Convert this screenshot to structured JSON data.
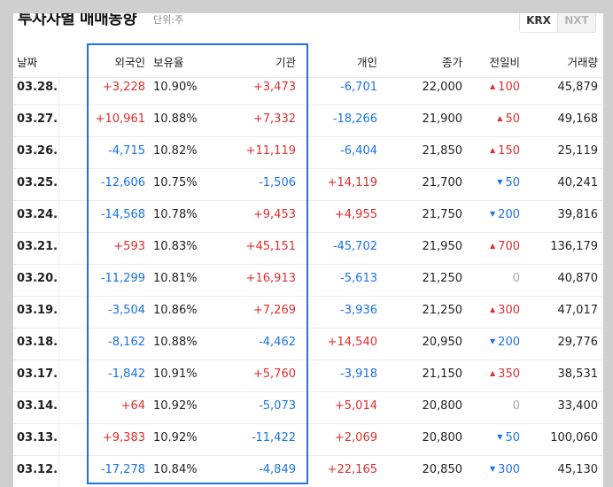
{
  "header": {
    "title": "투자자별 매매동향",
    "unit": "단위:주",
    "tabs": [
      {
        "label": "KRX",
        "active": true
      },
      {
        "label": "NXT",
        "active": false
      }
    ]
  },
  "columns": {
    "date": "날짜",
    "foreign": "외국인",
    "holding": "보유율",
    "institution": "기관",
    "individual": "개인",
    "close": "종가",
    "change": "전일비",
    "volume": "거래량"
  },
  "rows": [
    {
      "date": "03.28.",
      "foreign": "+3,228",
      "holding": "10.90%",
      "institution": "+3,473",
      "individual": "-6,701",
      "close": "22,000",
      "change_dir": "up",
      "change": "100",
      "volume": "45,879"
    },
    {
      "date": "03.27.",
      "foreign": "+10,961",
      "holding": "10.88%",
      "institution": "+7,332",
      "individual": "-18,266",
      "close": "21,900",
      "change_dir": "up",
      "change": "50",
      "volume": "49,168"
    },
    {
      "date": "03.26.",
      "foreign": "-4,715",
      "holding": "10.82%",
      "institution": "+11,119",
      "individual": "-6,404",
      "close": "21,850",
      "change_dir": "up",
      "change": "150",
      "volume": "25,119"
    },
    {
      "date": "03.25.",
      "foreign": "-12,606",
      "holding": "10.75%",
      "institution": "-1,506",
      "individual": "+14,119",
      "close": "21,700",
      "change_dir": "down",
      "change": "50",
      "volume": "40,241"
    },
    {
      "date": "03.24.",
      "foreign": "-14,568",
      "holding": "10.78%",
      "institution": "+9,453",
      "individual": "+4,955",
      "close": "21,750",
      "change_dir": "down",
      "change": "200",
      "volume": "39,816"
    },
    {
      "date": "03.21.",
      "foreign": "+593",
      "holding": "10.83%",
      "institution": "+45,151",
      "individual": "-45,702",
      "close": "21,950",
      "change_dir": "up",
      "change": "700",
      "volume": "136,179"
    },
    {
      "date": "03.20.",
      "foreign": "-11,299",
      "holding": "10.81%",
      "institution": "+16,913",
      "individual": "-5,613",
      "close": "21,250",
      "change_dir": "flat",
      "change": "0",
      "volume": "40,870"
    },
    {
      "date": "03.19.",
      "foreign": "-3,504",
      "holding": "10.86%",
      "institution": "+7,269",
      "individual": "-3,936",
      "close": "21,250",
      "change_dir": "up",
      "change": "300",
      "volume": "47,017"
    },
    {
      "date": "03.18.",
      "foreign": "-8,162",
      "holding": "10.88%",
      "institution": "-4,462",
      "individual": "+14,540",
      "close": "20,950",
      "change_dir": "down",
      "change": "200",
      "volume": "29,776"
    },
    {
      "date": "03.17.",
      "foreign": "-1,842",
      "holding": "10.91%",
      "institution": "+5,760",
      "individual": "-3,918",
      "close": "21,150",
      "change_dir": "up",
      "change": "350",
      "volume": "38,531"
    },
    {
      "date": "03.14.",
      "foreign": "+64",
      "holding": "10.92%",
      "institution": "-5,073",
      "individual": "+5,014",
      "close": "20,800",
      "change_dir": "flat",
      "change": "0",
      "volume": "33,400"
    },
    {
      "date": "03.13.",
      "foreign": "+9,383",
      "holding": "10.92%",
      "institution": "-11,422",
      "individual": "+2,069",
      "close": "20,800",
      "change_dir": "down",
      "change": "50",
      "volume": "100,060"
    },
    {
      "date": "03.12.",
      "foreign": "-17,278",
      "holding": "10.84%",
      "institution": "-4,849",
      "individual": "+22,165",
      "close": "20,850",
      "change_dir": "down",
      "change": "300",
      "volume": "45,130"
    }
  ],
  "icons": {
    "up": "triangle-up-icon",
    "down": "triangle-down-icon"
  },
  "colors": {
    "positive": "#e22d2d",
    "negative": "#1a73e8",
    "highlight": "#1f73e6"
  }
}
